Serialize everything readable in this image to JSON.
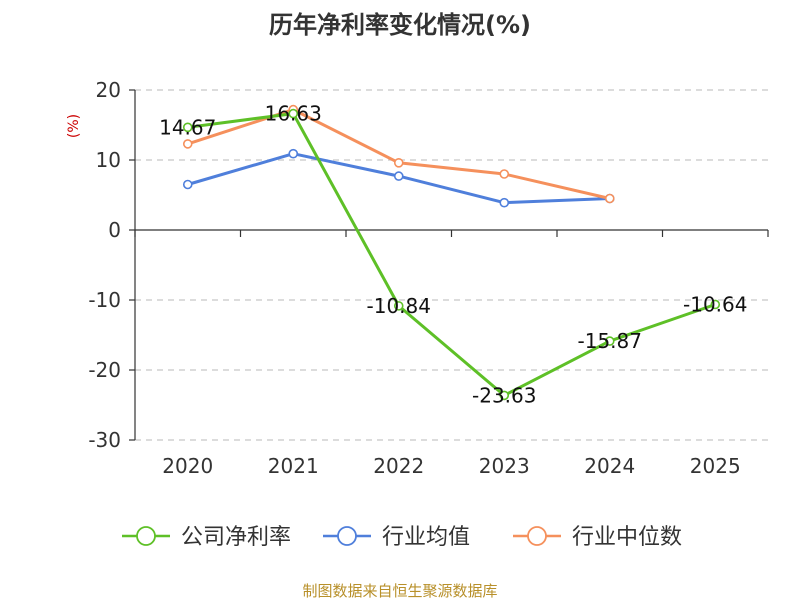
{
  "chart_data": {
    "type": "line",
    "title": "历年净利率变化情况(%)",
    "ylabel": "(%)",
    "xlabel": "",
    "categories": [
      "2020",
      "2021",
      "2022",
      "2023",
      "2024",
      "2025"
    ],
    "ylim": [
      -30,
      20
    ],
    "yticks": [
      20,
      10,
      0,
      -10,
      -20,
      -30
    ],
    "grid": true,
    "legend_position": "bottom",
    "series": [
      {
        "name": "公司净利率",
        "color": "#5ec027",
        "values": [
          14.67,
          16.63,
          -10.84,
          -23.63,
          -15.87,
          -10.64
        ],
        "labels": [
          "14.67",
          "16.63",
          "-10.84",
          "-23.63",
          "-15.87",
          "-10.64"
        ]
      },
      {
        "name": "行业均值",
        "color": "#4f7fdb",
        "values": [
          6.5,
          10.9,
          7.7,
          3.9,
          4.5,
          null
        ]
      },
      {
        "name": "行业中位数",
        "color": "#f5905c",
        "values": [
          12.3,
          17.2,
          9.6,
          8.0,
          4.5,
          null
        ]
      }
    ]
  },
  "footer": "制图数据来自恒生聚源数据库"
}
